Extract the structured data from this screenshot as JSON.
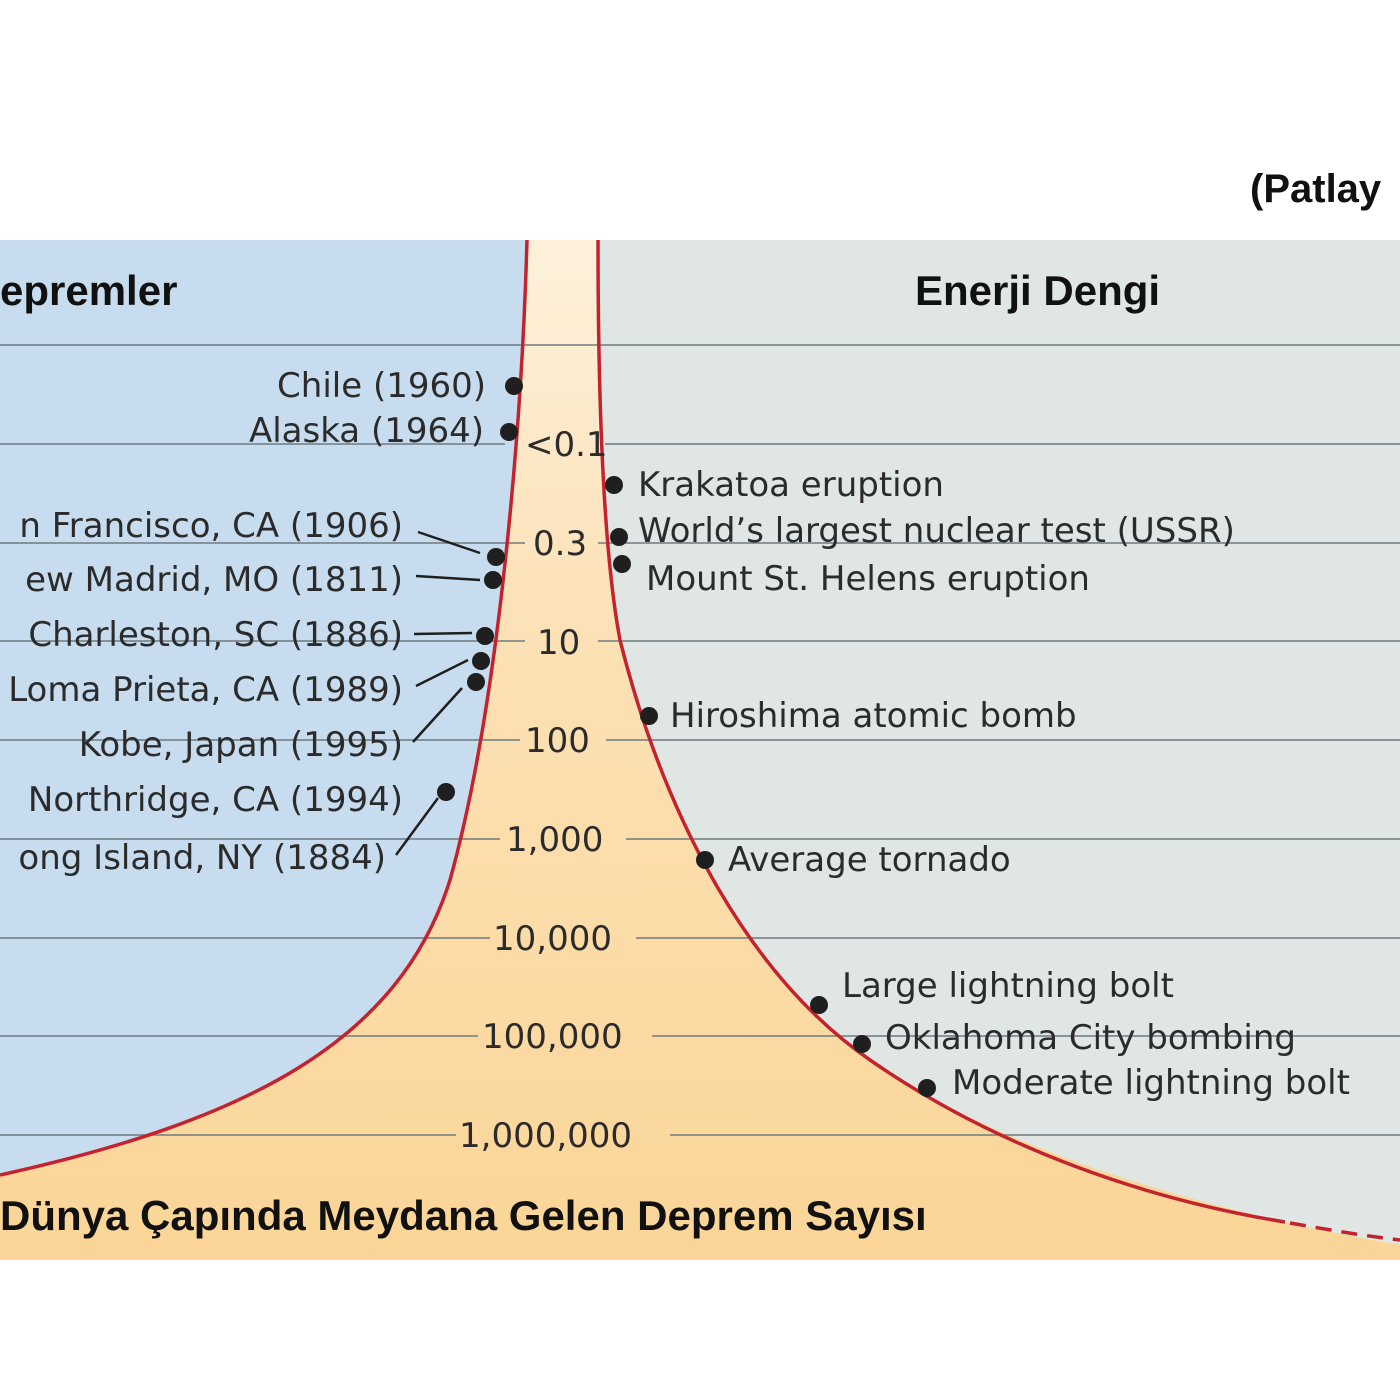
{
  "colors": {
    "left_panel": "#c7ddef",
    "right_panel": "#dfe6e4",
    "funnel_fill": "#fbd597",
    "funnel_top": "#fdf1dc",
    "curve": "#c4232e",
    "grid": "#6f7a80",
    "dot": "#1f1f1f"
  },
  "headers": {
    "top_right": "(Patlay",
    "left": "epremler",
    "right": "Enerji Dengi",
    "bottom": "Dünya Çapında Meydana Gelen Deprem Sayısı"
  },
  "scale_labels": [
    "<0.1",
    "0.3",
    "10",
    "100",
    "1,000",
    "10,000",
    "100,000",
    "1,000,000"
  ],
  "earthquakes": [
    "Chile (1960)",
    "Alaska (1964)",
    "n Francisco, CA (1906)",
    "ew Madrid, MO (1811)",
    "Charleston, SC (1886)",
    "Loma Prieta, CA (1989)",
    "Kobe, Japan (1995)",
    "Northridge, CA (1994)",
    "ong Island, NY (1884)"
  ],
  "energy_events": [
    "Krakatoa eruption",
    "World’s largest nuclear test (USSR)",
    "Mount St. Helens eruption",
    "Hiroshima atomic bomb",
    "Average tornado",
    "Large lightning bolt",
    "Oklahoma City bombing",
    "Moderate lightning bolt"
  ]
}
